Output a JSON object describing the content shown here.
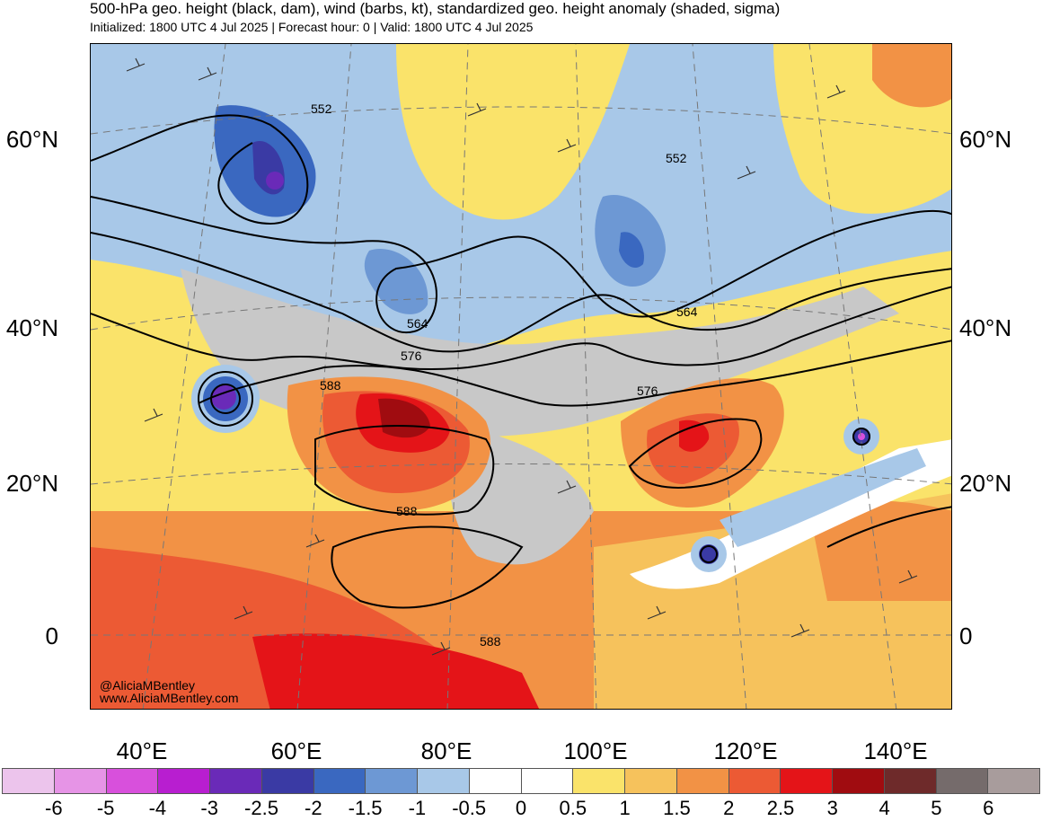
{
  "header": {
    "title": "500-hPa geo. height (black, dam), wind (barbs, kt), standardized geo. height anomaly (shaded, sigma)",
    "subtitle": "Initialized: 1800 UTC 4 Jul 2025 | Forecast hour: 0 | Valid: 1800 UTC 4 Jul 2025"
  },
  "map": {
    "lat_labels": [
      "60°N",
      "40°N",
      "20°N",
      "0"
    ],
    "lon_labels": [
      "40°E",
      "60°E",
      "80°E",
      "100°E",
      "120°E",
      "140°E"
    ],
    "contour_labels": [
      "552",
      "552",
      "564",
      "564",
      "576",
      "576",
      "588",
      "588",
      "588"
    ],
    "credit_handle": "@AliciaMBentley",
    "credit_url": "www.AliciaMBentley.com"
  },
  "colorbar": {
    "labels": [
      "-6",
      "-5",
      "-4",
      "-3",
      "-2.5",
      "-2",
      "-1.5",
      "-1",
      "-0.5",
      "0",
      "0.5",
      "1",
      "1.5",
      "2",
      "2.5",
      "3",
      "4",
      "5",
      "6"
    ],
    "colors": [
      "#ecc4ec",
      "#e694e6",
      "#d850dc",
      "#b81ed0",
      "#6a2ab8",
      "#3a3aa4",
      "#3a68c0",
      "#6d98d4",
      "#a8c8e8",
      "#ffffff",
      "#ffffff",
      "#fae36a",
      "#f6c25c",
      "#f29245",
      "#ec5a34",
      "#e41418",
      "#a00c10",
      "#6e2a2a",
      "#756b6b",
      "#a89c9c"
    ],
    "neutral_gray": "#c8c8c8"
  }
}
